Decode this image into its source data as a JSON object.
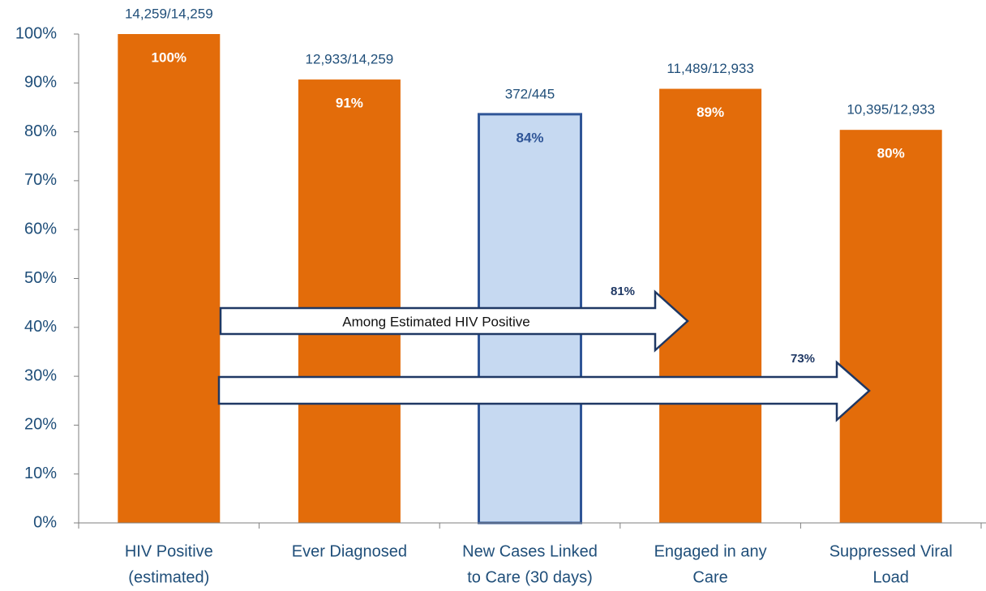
{
  "chart_data": {
    "type": "bar",
    "categories": [
      [
        "HIV Positive",
        "(estimated)"
      ],
      [
        "Ever Diagnosed"
      ],
      [
        "New Cases Linked",
        "to Care (30 days)"
      ],
      [
        "Engaged in any",
        "Care"
      ],
      [
        "Suppressed Viral",
        "Load"
      ]
    ],
    "values": [
      100,
      90.7,
      83.6,
      88.8,
      80.4
    ],
    "value_labels": [
      "100%",
      "91%",
      "84%",
      "89%",
      "80%"
    ],
    "fraction_labels": [
      "14,259/14,259",
      "12,933/14,259",
      "372/445",
      "11,489/12,933",
      "10,395/12,933"
    ],
    "colors": [
      "#e36c0a",
      "#e36c0a",
      "#c6d9f1",
      "#e36c0a",
      "#e36c0a"
    ],
    "edge_colors": [
      null,
      null,
      "#2f5597",
      null,
      null
    ],
    "ylim": [
      0,
      100
    ],
    "yticks": [
      {
        "value": 0,
        "label": "0%"
      },
      {
        "value": 10,
        "label": "10%"
      },
      {
        "value": 20,
        "label": "20%"
      },
      {
        "value": 30,
        "label": "30%"
      },
      {
        "value": 40,
        "label": "40%"
      },
      {
        "value": 50,
        "label": "50%"
      },
      {
        "value": 60,
        "label": "60%"
      },
      {
        "value": 70,
        "label": "70%"
      },
      {
        "value": 80,
        "label": "80%"
      },
      {
        "value": 90,
        "label": "90%"
      },
      {
        "value": 100,
        "label": "100%"
      }
    ],
    "annotations": [
      "Among Estimated HIV Positive",
      "81%",
      "73%"
    ]
  }
}
